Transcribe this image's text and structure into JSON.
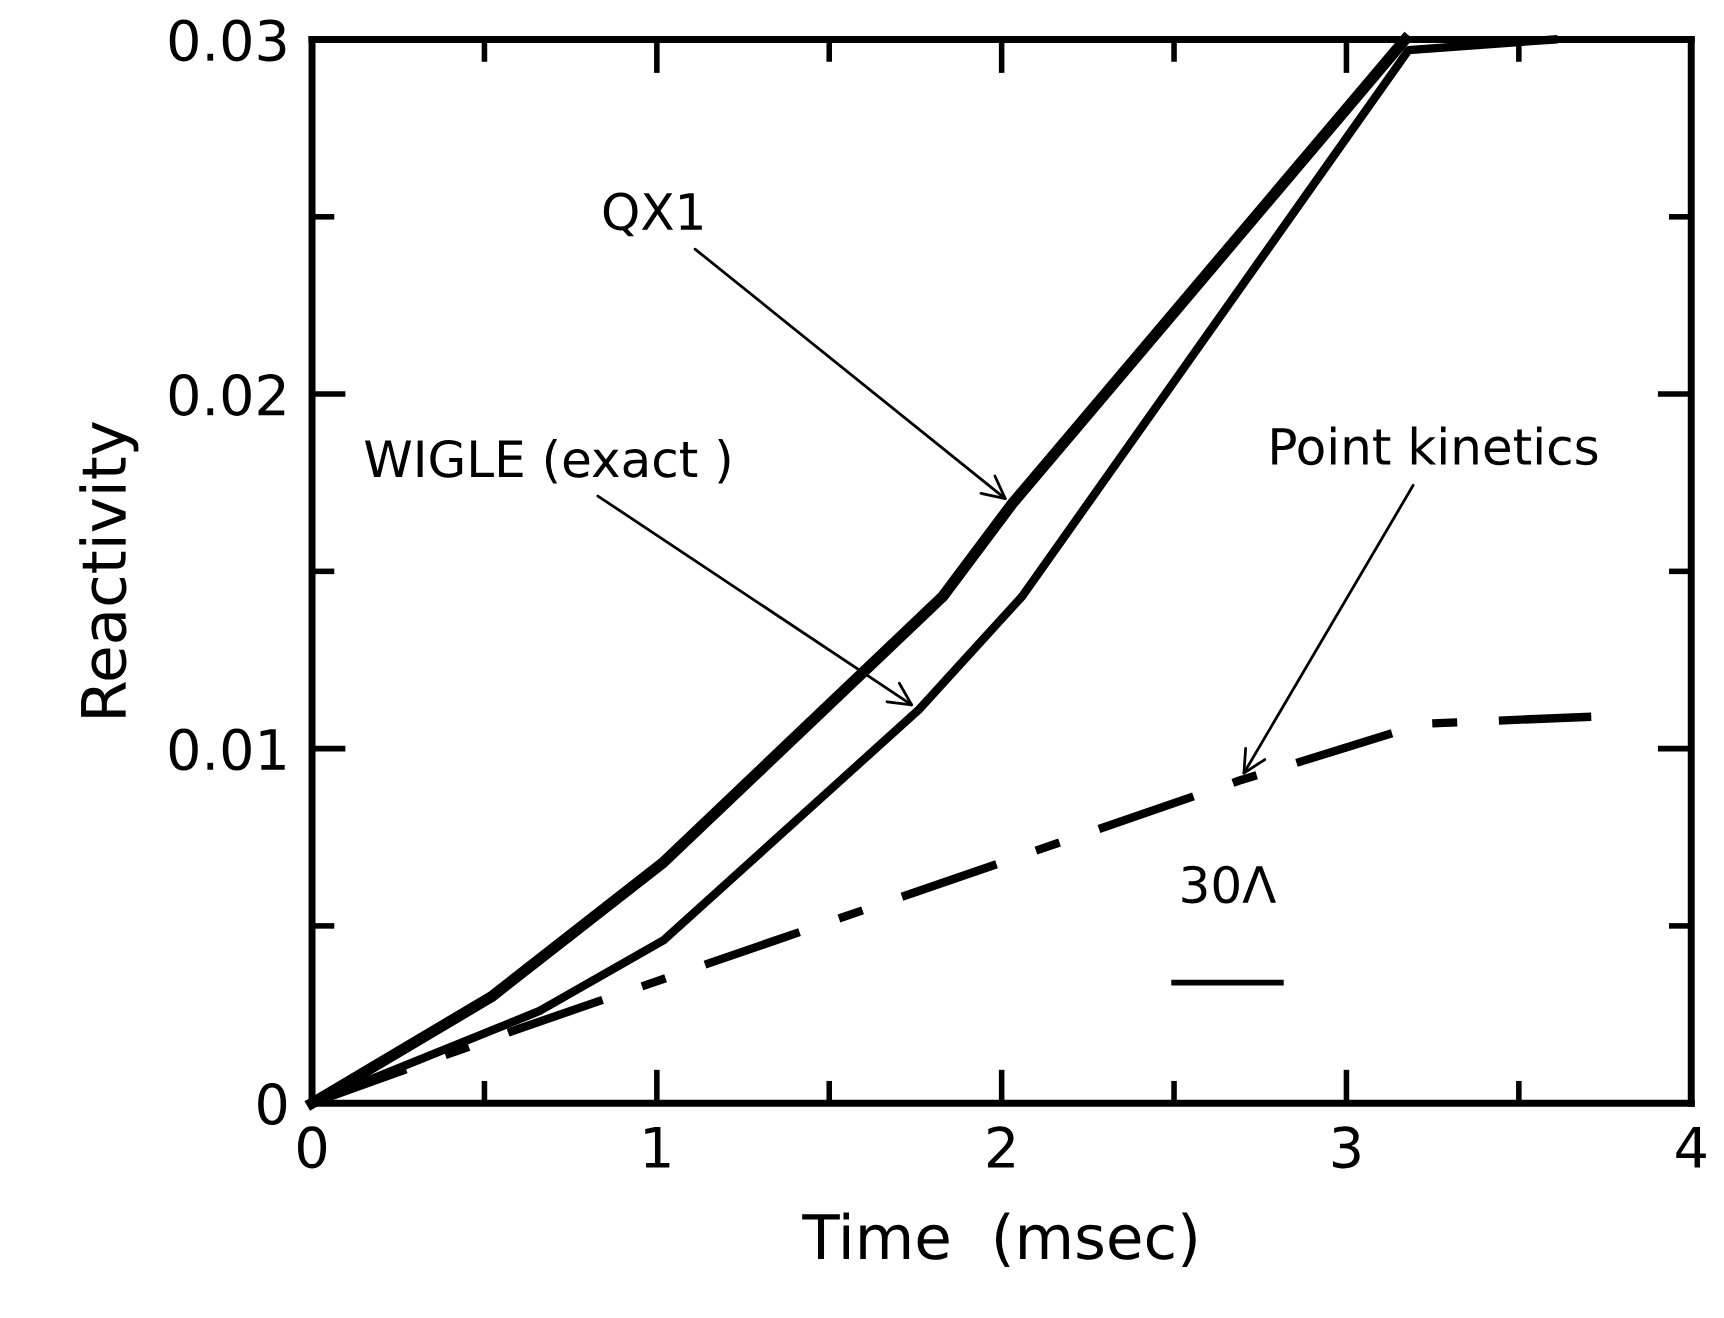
{
  "chart_data": {
    "type": "line",
    "xlabel": "Time  (msec)",
    "ylabel": "Reactivity",
    "xlim": [
      0,
      4
    ],
    "ylim": [
      0,
      0.03
    ],
    "xticks": [
      0,
      {
        "value": 0.5,
        "label": null
      },
      1,
      {
        "value": 1.5,
        "label": null
      },
      2,
      {
        "value": 2.5,
        "label": null
      },
      3,
      {
        "value": 3.5,
        "label": null
      },
      4
    ],
    "yticks": [
      0,
      {
        "value": 0.005,
        "label": null
      },
      0.01,
      {
        "value": 0.015,
        "label": null
      },
      0.02,
      {
        "value": 0.025,
        "label": null
      },
      0.03
    ],
    "grid": false,
    "legend": false,
    "marker": "none",
    "series": [
      {
        "color": "#000000",
        "line_style": "solid",
        "x": [
          0,
          0.52,
          1.02,
          1.83,
          2.03,
          3.17
        ],
        "values": [
          0,
          0.003,
          0.0068,
          0.0143,
          0.0169,
          0.03
        ]
      },
      {
        "color": "#000000",
        "line_style": "solid",
        "x": [
          0,
          0.66,
          1.02,
          1.76,
          2.06,
          3.18,
          3.6
        ],
        "values": [
          0,
          0.0026,
          0.0046,
          0.0111,
          0.0143,
          0.0297,
          0.03
        ]
      },
      {
        "color": "#000000",
        "line_style": "dashdot",
        "x": [
          0,
          0.6,
          2.69,
          3.22,
          3.71
        ],
        "values": [
          0,
          0.0021,
          0.0091,
          0.0107,
          0.0109
        ]
      },
      {
        "color": "#000000",
        "line_style": "solid",
        "x": [
          2.5,
          2.81
        ],
        "values": [
          0.0034,
          0.0034
        ]
      }
    ],
    "annotations": [
      {
        "text": "QX1",
        "x": 2.03,
        "y": 0.0169
      },
      {
        "text": "WIGLE (exact )",
        "x": 1.76,
        "y": 0.0111
      },
      {
        "text": "Point kinetics",
        "x": 2.69,
        "y": 0.0091
      },
      {
        "text": "30Λ",
        "x": 2.655,
        "y": 0.0034
      }
    ]
  }
}
